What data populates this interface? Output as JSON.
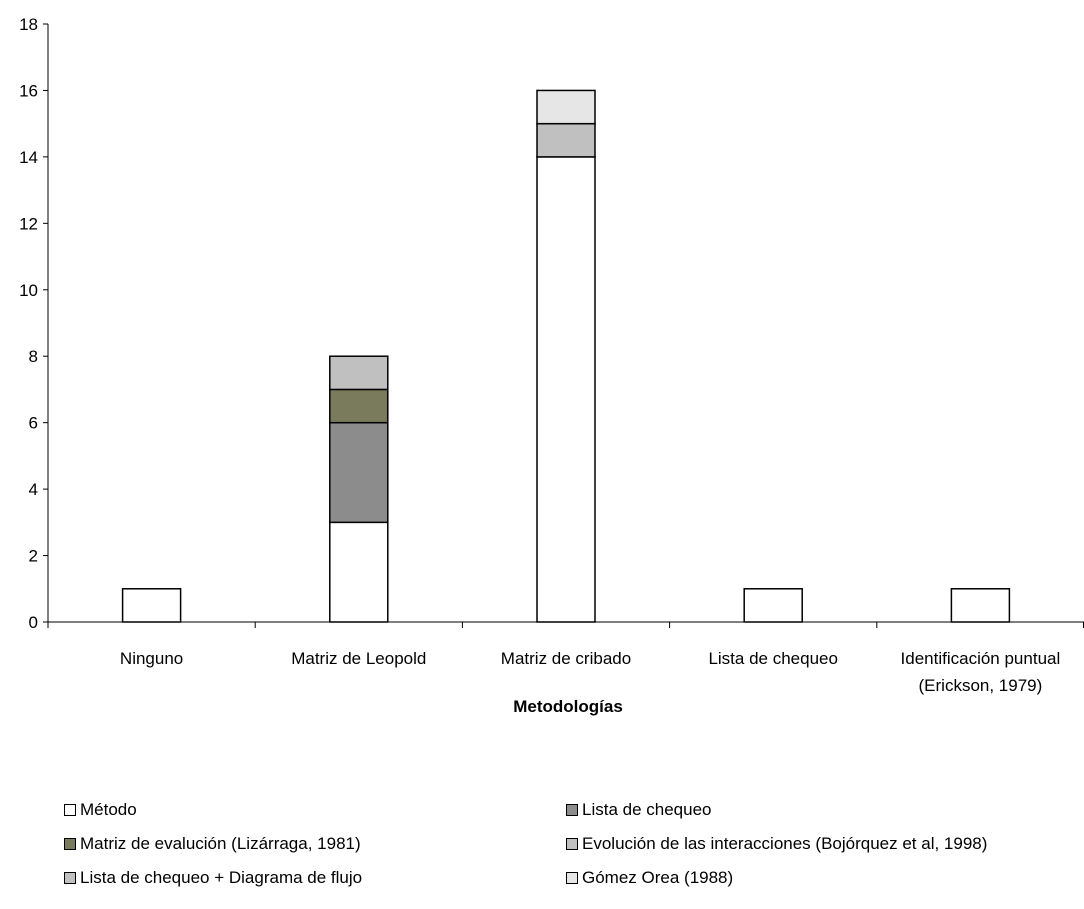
{
  "chart_data": {
    "type": "bar",
    "stacked": true,
    "categories": [
      "Ninguno",
      "Matriz de Leopold",
      "Matriz de cribado",
      "Lista de chequeo",
      "Identificación puntual (Erickson, 1979)"
    ],
    "category_lines": [
      [
        "Ninguno"
      ],
      [
        "Matriz de Leopold"
      ],
      [
        "Matriz de cribado"
      ],
      [
        "Lista de chequeo"
      ],
      [
        "Identificación puntual",
        "(Erickson, 1979)"
      ]
    ],
    "series": [
      {
        "name": "Método",
        "color": "#ffffff",
        "values": [
          1,
          3,
          14,
          1,
          1
        ]
      },
      {
        "name": "Lista de chequeo",
        "color": "#8c8c8c",
        "values": [
          0,
          3,
          0,
          0,
          0
        ]
      },
      {
        "name": "Matriz de evalución (Lizárraga, 1981)",
        "color": "#7a7a5c",
        "values": [
          0,
          1,
          0,
          0,
          0
        ]
      },
      {
        "name": "Evolución de las interacciones (Bojórquez et al, 1998)",
        "color": "#c0c0c0",
        "values": [
          0,
          1,
          1,
          0,
          0
        ]
      },
      {
        "name": "Lista de chequeo + Diagrama de flujo",
        "color": "#c0c0c0",
        "values": [
          0,
          0,
          0,
          0,
          0
        ]
      },
      {
        "name": "Gómez Orea (1988)",
        "color": "#e6e6e6",
        "values": [
          0,
          0,
          1,
          0,
          0
        ]
      }
    ],
    "ylim": [
      0,
      18
    ],
    "yticks": [
      "0",
      "2",
      "4",
      "6",
      "8",
      "10",
      "12",
      "14",
      "16",
      "18"
    ],
    "xlabel": "Metodologías",
    "ylabel": "",
    "title": "",
    "legend_position": "bottom",
    "grid": false
  }
}
